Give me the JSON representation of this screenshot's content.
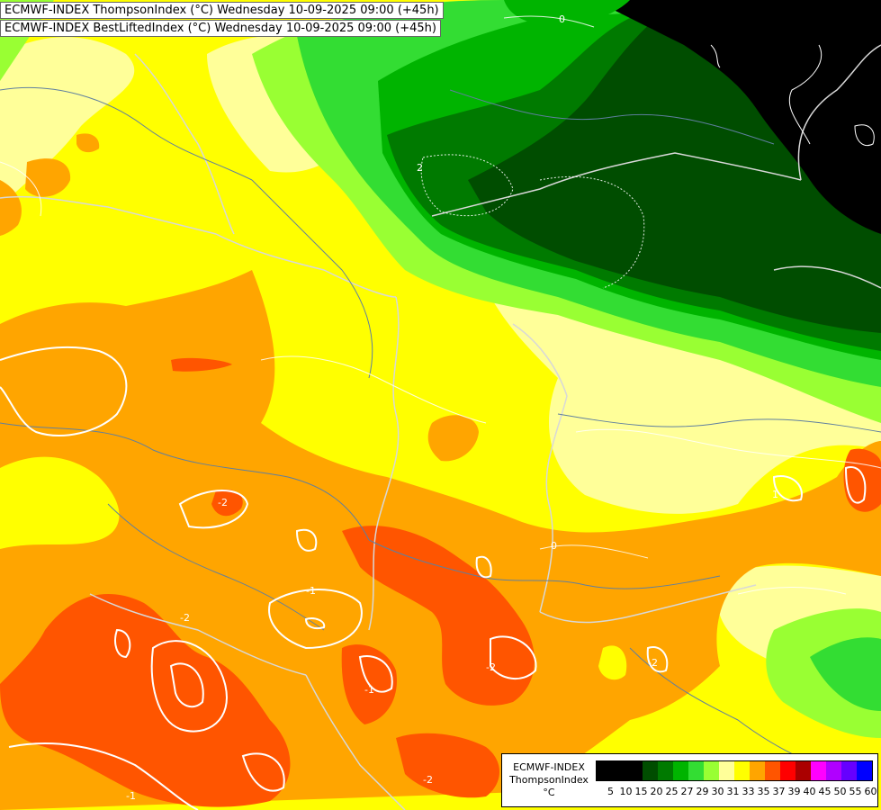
{
  "titles": [
    "ECMWF-INDEX ThompsonIndex (°C) Wednesday 10-09-2025 09:00 (+45h)",
    "ECMWF-INDEX BestLiftedIndex (°C) Wednesday 10-09-2025 09:00 (+45h)"
  ],
  "legend": {
    "model": "ECMWF-INDEX",
    "parameter": "ThompsonIndex",
    "unit": "°C",
    "levels": [
      {
        "value": "5",
        "color": "#000000"
      },
      {
        "value": "10",
        "color": "#000000"
      },
      {
        "value": "15",
        "color": "#000000"
      },
      {
        "value": "20",
        "color": "#004d00"
      },
      {
        "value": "25",
        "color": "#007a00"
      },
      {
        "value": "27",
        "color": "#00b400"
      },
      {
        "value": "29",
        "color": "#33dd33"
      },
      {
        "value": "30",
        "color": "#99ff33"
      },
      {
        "value": "31",
        "color": "#ffff99"
      },
      {
        "value": "33",
        "color": "#ffff00"
      },
      {
        "value": "35",
        "color": "#ffa500"
      },
      {
        "value": "37",
        "color": "#ff5500"
      },
      {
        "value": "39",
        "color": "#ff0000"
      },
      {
        "value": "40",
        "color": "#aa0000"
      },
      {
        "value": "45",
        "color": "#ff00ff"
      },
      {
        "value": "50",
        "color": "#b000ff"
      },
      {
        "value": "55",
        "color": "#6600ff"
      },
      {
        "value": "60",
        "color": "#0000ff"
      }
    ]
  },
  "contour_labels": [
    "0",
    "2",
    "-2",
    "-2",
    "-1",
    "0",
    "1",
    "-2",
    "-1",
    "-2",
    "-2",
    "-1"
  ]
}
